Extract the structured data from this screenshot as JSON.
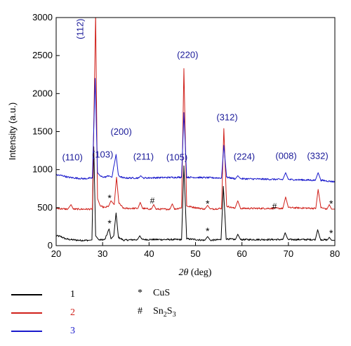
{
  "chart_data": {
    "type": "line",
    "xlabel": "2θ (deg)",
    "ylabel": "Intensity (a.u.)",
    "xlim": [
      20,
      80
    ],
    "ylim": [
      0,
      3000
    ],
    "x_ticks": [
      20,
      30,
      40,
      50,
      60,
      70,
      80
    ],
    "y_ticks": [
      0,
      500,
      1000,
      1500,
      2000,
      2500,
      3000
    ],
    "grid": false,
    "series": [
      {
        "name": "1",
        "color": "#000000",
        "baseline": 70,
        "points": [
          [
            20,
            130
          ],
          [
            21,
            120
          ],
          [
            22,
            90
          ],
          [
            23,
            80
          ],
          [
            24,
            75
          ],
          [
            25,
            70
          ],
          [
            26,
            70
          ],
          [
            27,
            70
          ],
          [
            27.7,
            75
          ],
          [
            28.1,
            1300
          ],
          [
            28.5,
            130
          ],
          [
            29.2,
            75
          ],
          [
            30.5,
            80
          ],
          [
            31.4,
            220
          ],
          [
            31.8,
            90
          ],
          [
            32.4,
            130
          ],
          [
            32.9,
            430
          ],
          [
            33.4,
            110
          ],
          [
            34.5,
            72
          ],
          [
            37.5,
            80
          ],
          [
            38.0,
            130
          ],
          [
            38.5,
            80
          ],
          [
            47.0,
            80
          ],
          [
            47.5,
            1050
          ],
          [
            48.1,
            90
          ],
          [
            52.0,
            70
          ],
          [
            52.6,
            120
          ],
          [
            53.2,
            70
          ],
          [
            55.5,
            80
          ],
          [
            56.0,
            780
          ],
          [
            56.6,
            90
          ],
          [
            58.6,
            80
          ],
          [
            59.1,
            150
          ],
          [
            59.7,
            80
          ],
          [
            68.8,
            80
          ],
          [
            69.3,
            170
          ],
          [
            69.9,
            80
          ],
          [
            75.8,
            80
          ],
          [
            76.3,
            210
          ],
          [
            76.9,
            80
          ],
          [
            78.4,
            75
          ],
          [
            78.8,
            110
          ],
          [
            79.3,
            70
          ],
          [
            80,
            70
          ]
        ]
      },
      {
        "name": "2",
        "color": "#d0201a",
        "baseline": 470,
        "points": [
          [
            20,
            490
          ],
          [
            22.5,
            480
          ],
          [
            23.2,
            540
          ],
          [
            23.7,
            480
          ],
          [
            27.8,
            480
          ],
          [
            28.5,
            3050
          ],
          [
            28.9,
            620
          ],
          [
            29.5,
            520
          ],
          [
            30.5,
            500
          ],
          [
            31.3,
            520
          ],
          [
            31.8,
            590
          ],
          [
            32.5,
            540
          ],
          [
            33.0,
            900
          ],
          [
            33.5,
            560
          ],
          [
            34.5,
            490
          ],
          [
            37.6,
            490
          ],
          [
            38.1,
            570
          ],
          [
            38.6,
            490
          ],
          [
            40.5,
            480
          ],
          [
            41.0,
            540
          ],
          [
            41.5,
            480
          ],
          [
            44.5,
            480
          ],
          [
            45.0,
            550
          ],
          [
            45.5,
            480
          ],
          [
            47.0,
            500
          ],
          [
            47.5,
            2330
          ],
          [
            48.1,
            520
          ],
          [
            52.0,
            480
          ],
          [
            52.6,
            530
          ],
          [
            53.2,
            480
          ],
          [
            55.6,
            490
          ],
          [
            56.1,
            1540
          ],
          [
            56.7,
            520
          ],
          [
            58.5,
            490
          ],
          [
            59.1,
            590
          ],
          [
            59.7,
            490
          ],
          [
            68.8,
            490
          ],
          [
            69.4,
            640
          ],
          [
            70.0,
            500
          ],
          [
            75.9,
            490
          ],
          [
            76.4,
            740
          ],
          [
            77.0,
            500
          ],
          [
            78.3,
            480
          ],
          [
            78.8,
            540
          ],
          [
            79.3,
            480
          ],
          [
            80,
            480
          ]
        ]
      },
      {
        "name": "3",
        "color": "#1a1acc",
        "baseline": 880,
        "points": [
          [
            20,
            930
          ],
          [
            21.5,
            920
          ],
          [
            22.5,
            900
          ],
          [
            24,
            890
          ],
          [
            26,
            880
          ],
          [
            27.8,
            890
          ],
          [
            28.4,
            2200
          ],
          [
            28.9,
            960
          ],
          [
            29.6,
            910
          ],
          [
            30.5,
            900
          ],
          [
            31.3,
            920
          ],
          [
            32.0,
            900
          ],
          [
            32.9,
            1200
          ],
          [
            33.4,
            920
          ],
          [
            34.5,
            890
          ],
          [
            37.8,
            890
          ],
          [
            38.2,
            920
          ],
          [
            38.7,
            890
          ],
          [
            47.0,
            900
          ],
          [
            47.5,
            1750
          ],
          [
            48.1,
            900
          ],
          [
            55.6,
            890
          ],
          [
            56.1,
            1320
          ],
          [
            56.7,
            900
          ],
          [
            58.6,
            880
          ],
          [
            59.1,
            920
          ],
          [
            59.7,
            880
          ],
          [
            68.8,
            870
          ],
          [
            69.4,
            960
          ],
          [
            70.0,
            870
          ],
          [
            75.8,
            860
          ],
          [
            76.4,
            960
          ],
          [
            77.0,
            860
          ],
          [
            80,
            840
          ]
        ]
      }
    ],
    "annotations": {
      "miller": [
        {
          "text": "(110)",
          "x": 23.5,
          "y": 1120
        },
        {
          "text": "(112)",
          "x": 25.8,
          "y": 2850
        },
        {
          "text": "(103)",
          "x": 30.0,
          "y": 1160
        },
        {
          "text": "(200)",
          "x": 34.0,
          "y": 1460
        },
        {
          "text": "(211)",
          "x": 38.8,
          "y": 1130
        },
        {
          "text": "(105)",
          "x": 46.0,
          "y": 1120
        },
        {
          "text": "(220)",
          "x": 48.3,
          "y": 2470
        },
        {
          "text": "(312)",
          "x": 56.8,
          "y": 1650
        },
        {
          "text": "(224)",
          "x": 60.5,
          "y": 1130
        },
        {
          "text": "(008)",
          "x": 69.5,
          "y": 1140
        },
        {
          "text": "(332)",
          "x": 76.3,
          "y": 1140
        }
      ],
      "markers": [
        {
          "text": "*",
          "x": 31.5,
          "y": 580
        },
        {
          "text": "*",
          "x": 31.5,
          "y": 250
        },
        {
          "text": "#",
          "x": 40.7,
          "y": 555
        },
        {
          "text": "*",
          "x": 52.6,
          "y": 510
        },
        {
          "text": "*",
          "x": 52.6,
          "y": 150
        },
        {
          "text": "#",
          "x": 67.0,
          "y": 480
        },
        {
          "text": "*",
          "x": 79.2,
          "y": 510
        },
        {
          "text": "*",
          "x": 79.2,
          "y": 120
        }
      ]
    },
    "legend": {
      "placement": "bottom",
      "items": [
        "1",
        "2",
        "3"
      ],
      "notes": [
        {
          "symbol": "*",
          "label": "CuS"
        },
        {
          "symbol": "#",
          "label": "Sn2S3"
        }
      ]
    }
  }
}
